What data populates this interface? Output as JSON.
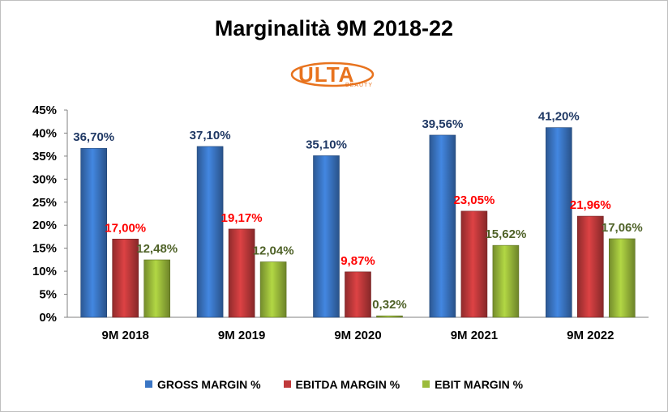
{
  "chart_data": {
    "type": "bar",
    "title": "Marginalità 9M 2018-22",
    "categories": [
      "9M 2018",
      "9M 2019",
      "9M 2020",
      "9M 2021",
      "9M 2022"
    ],
    "series": [
      {
        "name": "GROSS MARGIN %",
        "color": "#3a75c4",
        "values": [
          36.7,
          37.1,
          35.1,
          39.56,
          41.2
        ],
        "labels": [
          "36,70%",
          "37,10%",
          "35,10%",
          "39,56%",
          "41,20%"
        ],
        "label_color": "#1f3864"
      },
      {
        "name": "EBITDA MARGIN %",
        "color": "#c0393b",
        "values": [
          17.0,
          19.17,
          9.87,
          23.05,
          21.96
        ],
        "labels": [
          "17,00%",
          "19,17%",
          "9,87%",
          "23,05%",
          "21,96%"
        ],
        "label_color": "#ff0000"
      },
      {
        "name": "EBIT MARGIN %",
        "color": "#9bbb3b",
        "values": [
          12.48,
          12.04,
          0.32,
          15.62,
          17.06
        ],
        "labels": [
          "12,48%",
          "12,04%",
          "0,32%",
          "15,62%",
          "17,06%"
        ],
        "label_color": "#4f6228"
      }
    ],
    "ylim": [
      0,
      45
    ],
    "yticks": [
      "0%",
      "5%",
      "10%",
      "15%",
      "20%",
      "25%",
      "30%",
      "35%",
      "40%",
      "45%"
    ],
    "ytick_values": [
      0,
      5,
      10,
      15,
      20,
      25,
      30,
      35,
      40,
      45
    ],
    "grid": false,
    "legend_position": "bottom"
  },
  "logo": {
    "text": "ULTA",
    "subtext": "BEAUTY",
    "color": "#e8731e"
  }
}
